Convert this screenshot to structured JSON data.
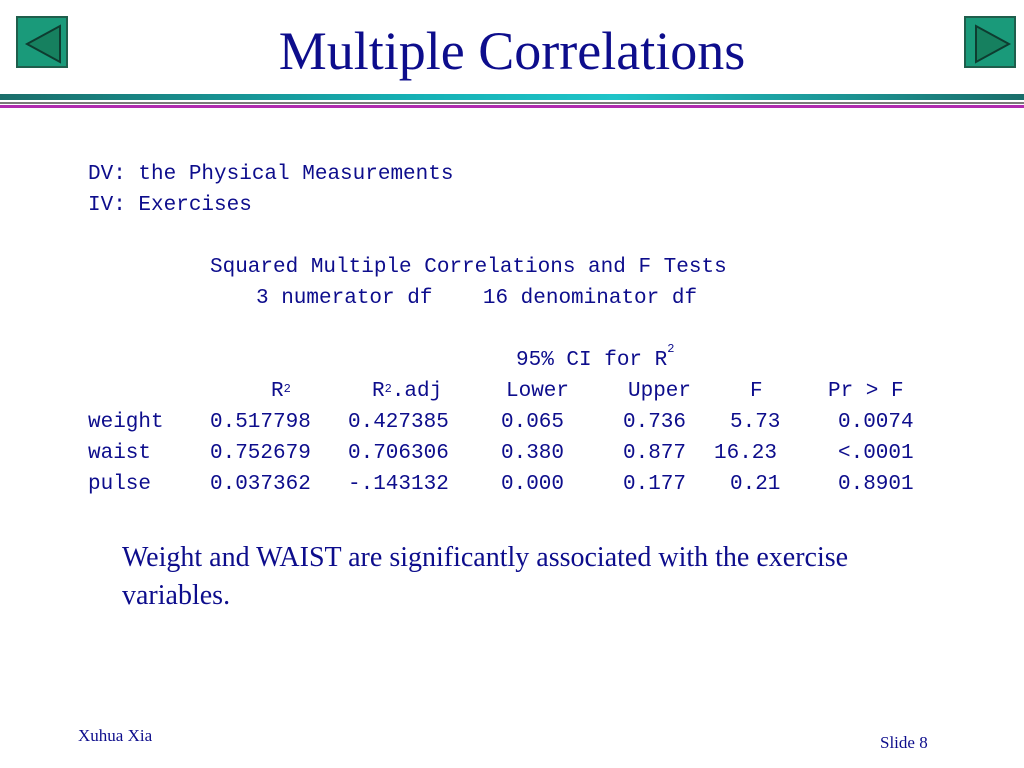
{
  "slide": {
    "title": "Multiple Correlations",
    "author": "Xuhua Xia",
    "slide_number": "Slide 8",
    "nav_prev_icon": "triangle-left-icon",
    "nav_next_icon": "triangle-right-icon",
    "colors": {
      "text": "#0d0d8c",
      "nav": "#1a9a7a",
      "rule_teal": "#15b0b4",
      "rule_magenta": "#b02cb0"
    }
  },
  "output": {
    "dv_line": "DV: the Physical Measurements",
    "iv_line": "IV: Exercises",
    "table_title": "Squared Multiple Correlations and F Tests",
    "df_line": "3 numerator df    16 denominator df",
    "ci_header": "95% CI for R",
    "ci_header_sup": "2",
    "columns": {
      "r2": "R",
      "r2_sup": "2",
      "r2adj_pre": "R",
      "r2adj_sup": "2",
      "r2adj_post": ".adj",
      "lower": "Lower",
      "upper": "Upper",
      "f": "F",
      "pr": "Pr > F"
    },
    "rows": [
      {
        "name": "weight",
        "r2": "0.517798",
        "r2adj": "0.427385",
        "lower": "0.065",
        "upper": "0.736",
        "f": "5.73",
        "pr": "0.0074"
      },
      {
        "name": "waist",
        "r2": "0.752679",
        "r2adj": "0.706306",
        "lower": "0.380",
        "upper": "0.877",
        "f": "16.23",
        "pr": "<.0001"
      },
      {
        "name": "pulse",
        "r2": "0.037362",
        "r2adj": "-.143132",
        "lower": "0.000",
        "upper": "0.177",
        "f": "0.21",
        "pr": "0.8901"
      }
    ]
  },
  "conclusion": "Weight and WAIST are significantly associated with the exercise variables."
}
